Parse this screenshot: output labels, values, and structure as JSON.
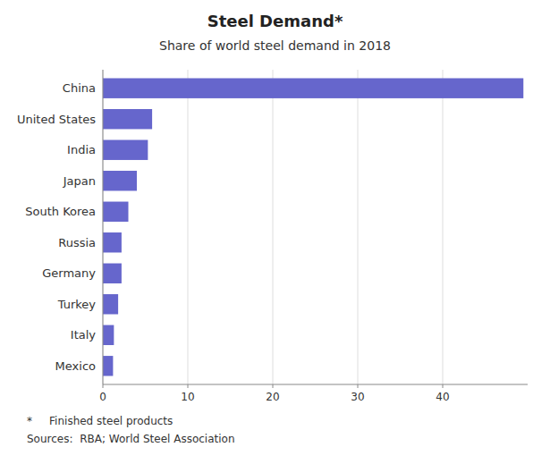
{
  "chart_data": {
    "type": "bar",
    "orientation": "horizontal",
    "title": "Steel Demand*",
    "subtitle": "Share of world steel demand in 2018",
    "categories": [
      "Mexico",
      "Italy",
      "Turkey",
      "Germany",
      "Russia",
      "South Korea",
      "Japan",
      "India",
      "United States",
      "China"
    ],
    "values": [
      1.2,
      1.3,
      1.8,
      2.2,
      2.2,
      3.0,
      4.0,
      5.3,
      5.8,
      49.5
    ],
    "color": "#6666CC",
    "xlim": [
      0,
      50
    ],
    "xticks": [
      0,
      10,
      20,
      30,
      40
    ],
    "grid": true,
    "annotations": [
      "*     Finished steel products",
      "Sources:  RBA; World Steel Association"
    ]
  }
}
